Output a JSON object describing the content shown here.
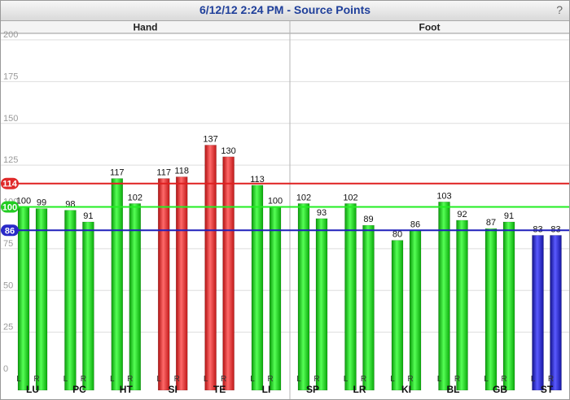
{
  "header": {
    "title": "6/12/12 2:24 PM - Source Points",
    "help_label": "?"
  },
  "colors": {
    "green": "#11dd11",
    "red": "#ff2a2a",
    "blue": "#2020cc",
    "upper_line": "#e02020",
    "mid_line": "#22ee22",
    "lower_line": "#2020bb",
    "grid": "#dddddd"
  },
  "chart_data": {
    "type": "bar",
    "ylim": [
      0,
      200
    ],
    "yticks": [
      0,
      25,
      50,
      75,
      100,
      125,
      150,
      175,
      200
    ],
    "grid": true,
    "panels": [
      "Hand",
      "Foot"
    ],
    "reference_lines": [
      {
        "value": 114,
        "label": "114",
        "color": "red"
      },
      {
        "value": 100,
        "label": "100",
        "color": "green"
      },
      {
        "value": 86,
        "label": "86",
        "color": "blue"
      }
    ],
    "groups": [
      {
        "name": "LU",
        "panel": "Hand",
        "bars": [
          {
            "side": "L",
            "value": 100,
            "color": "green"
          },
          {
            "side": "R",
            "value": 99,
            "color": "green"
          }
        ]
      },
      {
        "name": "PC",
        "panel": "Hand",
        "bars": [
          {
            "side": "L",
            "value": 98,
            "color": "green"
          },
          {
            "side": "R",
            "value": 91,
            "color": "green"
          }
        ]
      },
      {
        "name": "HT",
        "panel": "Hand",
        "bars": [
          {
            "side": "L",
            "value": 117,
            "color": "green"
          },
          {
            "side": "R",
            "value": 102,
            "color": "green"
          }
        ]
      },
      {
        "name": "SI",
        "panel": "Hand",
        "bars": [
          {
            "side": "L",
            "value": 117,
            "color": "red"
          },
          {
            "side": "R",
            "value": 118,
            "color": "red"
          }
        ]
      },
      {
        "name": "TE",
        "panel": "Hand",
        "bars": [
          {
            "side": "L",
            "value": 137,
            "color": "red"
          },
          {
            "side": "R",
            "value": 130,
            "color": "red"
          }
        ]
      },
      {
        "name": "LI",
        "panel": "Hand",
        "bars": [
          {
            "side": "L",
            "value": 113,
            "color": "green"
          },
          {
            "side": "R",
            "value": 100,
            "color": "green"
          }
        ]
      },
      {
        "name": "SP",
        "panel": "Foot",
        "bars": [
          {
            "side": "L",
            "value": 102,
            "color": "green"
          },
          {
            "side": "R",
            "value": 93,
            "color": "green"
          }
        ]
      },
      {
        "name": "LR",
        "panel": "Foot",
        "bars": [
          {
            "side": "L",
            "value": 102,
            "color": "green"
          },
          {
            "side": "R",
            "value": 89,
            "color": "green"
          }
        ]
      },
      {
        "name": "KI",
        "panel": "Foot",
        "bars": [
          {
            "side": "L",
            "value": 80,
            "color": "green"
          },
          {
            "side": "R",
            "value": 86,
            "color": "green"
          }
        ]
      },
      {
        "name": "BL",
        "panel": "Foot",
        "bars": [
          {
            "side": "L",
            "value": 103,
            "color": "green"
          },
          {
            "side": "R",
            "value": 92,
            "color": "green"
          }
        ]
      },
      {
        "name": "GB",
        "panel": "Foot",
        "bars": [
          {
            "side": "L",
            "value": 87,
            "color": "green"
          },
          {
            "side": "R",
            "value": 91,
            "color": "green"
          }
        ]
      },
      {
        "name": "ST",
        "panel": "Foot",
        "bars": [
          {
            "side": "L",
            "value": 83,
            "color": "blue"
          },
          {
            "side": "R",
            "value": 83,
            "color": "blue"
          }
        ]
      }
    ]
  }
}
